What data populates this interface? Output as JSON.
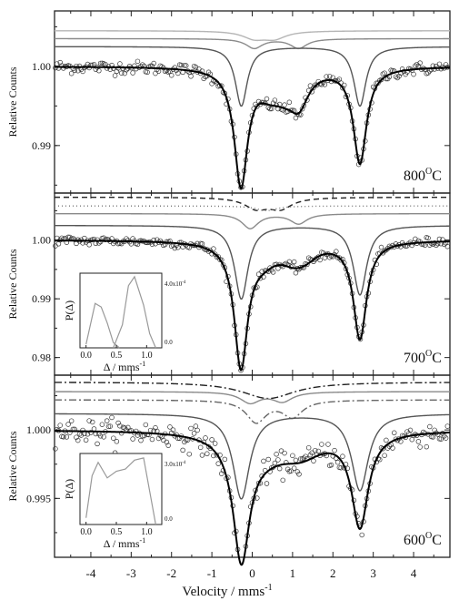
{
  "chart_data": [
    {
      "type": "line",
      "panel": "top",
      "temperature_label": "800",
      "temperature_sup": "O",
      "temperature_unit": "C",
      "ylabel": "Relative Counts",
      "ylim": [
        0.984,
        1.007
      ],
      "yticks": [
        0.99,
        1.0
      ],
      "yticklabels": [
        "0.99",
        "1.00"
      ],
      "xlim": [
        -4.9,
        4.9
      ],
      "lines": [
        {
          "offset": 0.0045,
          "color": "#b5b5b5",
          "peaks": [
            [
              0.05,
              0.35,
              0.0009
            ],
            [
              0.55,
              0.35,
              0.0009
            ]
          ]
        },
        {
          "offset": 0.0035,
          "color": "#8a8a8a",
          "peaks": [
            [
              0.05,
              0.25,
              0.0012
            ],
            [
              1.15,
              0.25,
              0.0012
            ]
          ]
        },
        {
          "offset": 0.0025,
          "color": "#555555",
          "peaks": [
            [
              -0.27,
              0.18,
              0.0075
            ],
            [
              2.67,
              0.18,
              0.0075
            ]
          ]
        }
      ],
      "fit": {
        "peaks": [
          [
            -0.28,
            0.2,
            0.0145
          ],
          [
            2.67,
            0.2,
            0.012
          ],
          [
            0.45,
            0.4,
            0.0025
          ],
          [
            1.15,
            0.3,
            0.0042
          ],
          [
            0.8,
            0.3,
            0.0015
          ]
        ],
        "noise": 0.0004
      }
    },
    {
      "type": "line",
      "panel": "middle",
      "temperature_label": "700",
      "temperature_sup": "O",
      "temperature_unit": "C",
      "ylabel": "Relative Counts",
      "ylim": [
        0.977,
        1.008
      ],
      "yticks": [
        0.98,
        0.99,
        1.0
      ],
      "yticklabels": [
        "0.98",
        "0.99",
        "1.00"
      ],
      "xlim": [
        -4.9,
        4.9
      ],
      "lines": [
        {
          "offset": 0.0073,
          "color": "#222222",
          "dash": "6,4",
          "peaks": [
            [
              0.1,
              0.35,
              0.0018
            ],
            [
              0.7,
              0.35,
              0.0018
            ]
          ]
        },
        {
          "offset": 0.0058,
          "color": "#777777",
          "dash": "1,3",
          "peaks": [
            [
              0.35,
              0.3,
              0.0008
            ]
          ]
        },
        {
          "offset": 0.0045,
          "color": "#8a8a8a",
          "peaks": [
            [
              -0.05,
              0.25,
              0.0025
            ],
            [
              1.15,
              0.25,
              0.0017
            ]
          ]
        },
        {
          "offset": 0.0025,
          "color": "#555555",
          "peaks": [
            [
              -0.27,
              0.2,
              0.0125
            ],
            [
              2.67,
              0.2,
              0.0118
            ]
          ]
        }
      ],
      "fit": {
        "peaks": [
          [
            -0.28,
            0.2,
            0.0207
          ],
          [
            2.67,
            0.2,
            0.0165
          ],
          [
            0.25,
            0.45,
            0.0025
          ],
          [
            1.05,
            0.45,
            0.0028
          ],
          [
            1.35,
            0.35,
            0.0012
          ]
        ],
        "noise": 0.0004
      },
      "inset": {
        "ylabel": "P(Δ)",
        "xlabel": "Δ / mms",
        "xlabel_sup": "-1",
        "xticks": [
          "0.0",
          "0.5",
          "1.0"
        ],
        "ytick_top": "4.0x10",
        "ytick_top_sup": "-4",
        "ytick_bottom": "0.0",
        "xlim": [
          -0.1,
          1.25
        ],
        "ylim": [
          0,
          4.2
        ],
        "series": [
          {
            "x": [
              0.0,
              0.15,
              0.25,
              0.35,
              0.45,
              0.55
            ],
            "y": [
              0.2,
              2.5,
              2.3,
              1.4,
              0.3,
              0.0
            ]
          },
          {
            "x": [
              0.45,
              0.6,
              0.7,
              0.8,
              0.95,
              1.05,
              1.15
            ],
            "y": [
              0.0,
              1.3,
              3.5,
              4.0,
              2.4,
              0.8,
              0.0
            ]
          }
        ]
      }
    },
    {
      "type": "line",
      "panel": "bottom",
      "temperature_label": "600",
      "temperature_sup": "O",
      "temperature_unit": "C",
      "ylabel": "Relative Counts",
      "ylim": [
        0.9907,
        1.004
      ],
      "yticks": [
        0.995,
        1.0
      ],
      "yticklabels": [
        "0.995",
        "1.000"
      ],
      "xlim": [
        -4.9,
        4.9
      ],
      "xticks": [
        -4,
        -3,
        -2,
        -1,
        0,
        1,
        2,
        3,
        4
      ],
      "xlabel": "Velocity / mms",
      "xlabel_sup": "-1",
      "lines": [
        {
          "offset": 0.0035,
          "color": "#222222",
          "dash": "8,3,2,3",
          "peaks": [
            [
              0.4,
              0.8,
              0.0012
            ]
          ]
        },
        {
          "offset": 0.0028,
          "color": "#8a8a8a",
          "peaks": [
            [
              -0.05,
              0.3,
              0.0008
            ],
            [
              0.75,
              0.3,
              0.0007
            ]
          ]
        },
        {
          "offset": 0.0022,
          "color": "#666666",
          "dash": "8,3,2,3",
          "peaks": [
            [
              0.1,
              0.3,
              0.0016
            ],
            [
              1.0,
              0.3,
              0.0012
            ]
          ]
        },
        {
          "offset": 0.0012,
          "color": "#555555",
          "peaks": [
            [
              -0.27,
              0.25,
              0.0062
            ],
            [
              2.67,
              0.25,
              0.0056
            ]
          ]
        }
      ],
      "fit": {
        "peaks": [
          [
            -0.27,
            0.25,
            0.0088
          ],
          [
            2.67,
            0.25,
            0.0068
          ],
          [
            0.3,
            0.7,
            0.0012
          ],
          [
            1.2,
            0.7,
            0.0015
          ]
        ],
        "noise": 0.00045
      },
      "inset": {
        "ylabel": "P(Δ)",
        "xlabel": "Δ / mms",
        "xlabel_sup": "-1",
        "xticks": [
          "0.0",
          "0.5",
          "1.0"
        ],
        "ytick_top": "3.0x10",
        "ytick_top_sup": "-4",
        "ytick_bottom": "0.0",
        "xlim": [
          -0.1,
          1.25
        ],
        "ylim": [
          0,
          3.2
        ],
        "series": [
          {
            "x": [
              0.0,
              0.1,
              0.2,
              0.35,
              0.5,
              0.65,
              0.8,
              0.95,
              1.05,
              1.15
            ],
            "y": [
              0.3,
              2.2,
              2.8,
              2.1,
              2.4,
              2.5,
              2.9,
              3.0,
              1.5,
              0.0
            ]
          }
        ]
      }
    }
  ]
}
